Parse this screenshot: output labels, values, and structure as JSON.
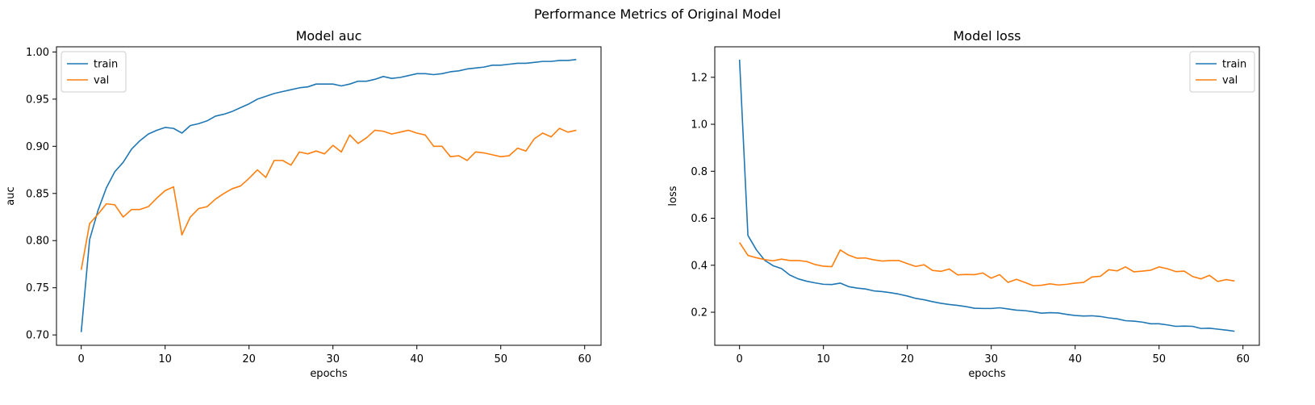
{
  "figure": {
    "suptitle": "Performance Metrics of Original Model"
  },
  "colors": {
    "train": "#1f77b4",
    "val": "#ff7f0e",
    "axes": "#000000",
    "legend_border": "#cccccc"
  },
  "chart_data": [
    {
      "type": "line",
      "title": "Model auc",
      "xlabel": "epochs",
      "ylabel": "auc",
      "xlim": [
        -2.95,
        61.95
      ],
      "ylim": [
        0.689,
        1.0055
      ],
      "xticks": [
        0,
        10,
        20,
        30,
        40,
        50,
        60
      ],
      "xtick_labels": [
        "0",
        "10",
        "20",
        "30",
        "40",
        "50",
        "60"
      ],
      "yticks": [
        0.7,
        0.75,
        0.8,
        0.85,
        0.9,
        0.95,
        1.0
      ],
      "ytick_labels": [
        "0.70",
        "0.75",
        "0.80",
        "0.85",
        "0.90",
        "0.95",
        "1.00"
      ],
      "grid": false,
      "legend_position": "top-left",
      "series": [
        {
          "name": "train",
          "color": "#1f77b4",
          "x": [
            0,
            1,
            2,
            3,
            4,
            5,
            6,
            7,
            8,
            9,
            10,
            11,
            12,
            13,
            14,
            15,
            16,
            17,
            18,
            19,
            20,
            21,
            22,
            23,
            24,
            25,
            26,
            27,
            28,
            29,
            30,
            31,
            32,
            33,
            34,
            35,
            36,
            37,
            38,
            39,
            40,
            41,
            42,
            43,
            44,
            45,
            46,
            47,
            48,
            49,
            50,
            51,
            52,
            53,
            54,
            55,
            56,
            57,
            58,
            59
          ],
          "values": [
            0.703,
            0.801,
            0.832,
            0.856,
            0.873,
            0.883,
            0.897,
            0.906,
            0.913,
            0.917,
            0.92,
            0.919,
            0.914,
            0.922,
            0.924,
            0.927,
            0.932,
            0.934,
            0.937,
            0.941,
            0.945,
            0.95,
            0.953,
            0.956,
            0.958,
            0.96,
            0.962,
            0.963,
            0.966,
            0.966,
            0.966,
            0.964,
            0.966,
            0.969,
            0.969,
            0.971,
            0.974,
            0.972,
            0.973,
            0.975,
            0.977,
            0.977,
            0.976,
            0.977,
            0.979,
            0.98,
            0.982,
            0.983,
            0.984,
            0.986,
            0.986,
            0.987,
            0.988,
            0.988,
            0.989,
            0.99,
            0.99,
            0.991,
            0.991,
            0.992
          ]
        },
        {
          "name": "val",
          "color": "#ff7f0e",
          "x": [
            0,
            1,
            2,
            3,
            4,
            5,
            6,
            7,
            8,
            9,
            10,
            11,
            12,
            13,
            14,
            15,
            16,
            17,
            18,
            19,
            20,
            21,
            22,
            23,
            24,
            25,
            26,
            27,
            28,
            29,
            30,
            31,
            32,
            33,
            34,
            35,
            36,
            37,
            38,
            39,
            40,
            41,
            42,
            43,
            44,
            45,
            46,
            47,
            48,
            49,
            50,
            51,
            52,
            53,
            54,
            55,
            56,
            57,
            58,
            59
          ],
          "values": [
            0.769,
            0.818,
            0.828,
            0.839,
            0.838,
            0.825,
            0.833,
            0.833,
            0.836,
            0.845,
            0.853,
            0.857,
            0.806,
            0.825,
            0.834,
            0.836,
            0.844,
            0.85,
            0.855,
            0.858,
            0.866,
            0.875,
            0.867,
            0.885,
            0.885,
            0.88,
            0.894,
            0.892,
            0.895,
            0.892,
            0.901,
            0.894,
            0.912,
            0.903,
            0.909,
            0.917,
            0.916,
            0.913,
            0.915,
            0.917,
            0.914,
            0.912,
            0.9,
            0.9,
            0.889,
            0.89,
            0.885,
            0.894,
            0.893,
            0.891,
            0.889,
            0.89,
            0.898,
            0.895,
            0.908,
            0.914,
            0.91,
            0.919,
            0.915,
            0.917
          ]
        }
      ]
    },
    {
      "type": "line",
      "title": "Model loss",
      "xlabel": "epochs",
      "ylabel": "loss",
      "xlim": [
        -2.95,
        61.95
      ],
      "ylim": [
        0.0593,
        1.3298
      ],
      "xticks": [
        0,
        10,
        20,
        30,
        40,
        50,
        60
      ],
      "xtick_labels": [
        "0",
        "10",
        "20",
        "30",
        "40",
        "50",
        "60"
      ],
      "yticks": [
        0.2,
        0.4,
        0.6,
        0.8,
        1.0,
        1.2
      ],
      "ytick_labels": [
        "0.2",
        "0.4",
        "0.6",
        "0.8",
        "1.0",
        "1.2"
      ],
      "grid": false,
      "legend_position": "top-right",
      "series": [
        {
          "name": "train",
          "color": "#1f77b4",
          "x": [
            0,
            1,
            2,
            3,
            4,
            5,
            6,
            7,
            8,
            9,
            10,
            11,
            12,
            13,
            14,
            15,
            16,
            17,
            18,
            19,
            20,
            21,
            22,
            23,
            24,
            25,
            26,
            27,
            28,
            29,
            30,
            31,
            32,
            33,
            34,
            35,
            36,
            37,
            38,
            39,
            40,
            41,
            42,
            43,
            44,
            45,
            46,
            47,
            48,
            49,
            50,
            51,
            52,
            53,
            54,
            55,
            56,
            57,
            58,
            59
          ],
          "values": [
            1.275,
            0.527,
            0.466,
            0.421,
            0.398,
            0.386,
            0.358,
            0.342,
            0.332,
            0.325,
            0.319,
            0.318,
            0.324,
            0.309,
            0.303,
            0.299,
            0.291,
            0.288,
            0.283,
            0.277,
            0.269,
            0.259,
            0.253,
            0.245,
            0.238,
            0.233,
            0.229,
            0.224,
            0.217,
            0.216,
            0.216,
            0.219,
            0.214,
            0.209,
            0.207,
            0.202,
            0.196,
            0.198,
            0.197,
            0.191,
            0.186,
            0.184,
            0.185,
            0.182,
            0.176,
            0.172,
            0.164,
            0.162,
            0.158,
            0.151,
            0.151,
            0.146,
            0.14,
            0.141,
            0.14,
            0.131,
            0.132,
            0.128,
            0.124,
            0.119
          ]
        },
        {
          "name": "val",
          "color": "#ff7f0e",
          "x": [
            0,
            1,
            2,
            3,
            4,
            5,
            6,
            7,
            8,
            9,
            10,
            11,
            12,
            13,
            14,
            15,
            16,
            17,
            18,
            19,
            20,
            21,
            22,
            23,
            24,
            25,
            26,
            27,
            28,
            29,
            30,
            31,
            32,
            33,
            34,
            35,
            36,
            37,
            38,
            39,
            40,
            41,
            42,
            43,
            44,
            45,
            46,
            47,
            48,
            49,
            50,
            51,
            52,
            53,
            54,
            55,
            56,
            57,
            58,
            59
          ],
          "values": [
            0.497,
            0.442,
            0.432,
            0.424,
            0.419,
            0.426,
            0.42,
            0.42,
            0.416,
            0.403,
            0.396,
            0.394,
            0.465,
            0.443,
            0.43,
            0.431,
            0.423,
            0.418,
            0.42,
            0.42,
            0.407,
            0.395,
            0.402,
            0.378,
            0.374,
            0.384,
            0.359,
            0.361,
            0.36,
            0.367,
            0.345,
            0.36,
            0.327,
            0.34,
            0.327,
            0.313,
            0.315,
            0.321,
            0.316,
            0.319,
            0.324,
            0.327,
            0.35,
            0.353,
            0.381,
            0.376,
            0.393,
            0.372,
            0.375,
            0.379,
            0.393,
            0.385,
            0.373,
            0.375,
            0.352,
            0.342,
            0.357,
            0.331,
            0.339,
            0.333
          ]
        }
      ]
    }
  ]
}
